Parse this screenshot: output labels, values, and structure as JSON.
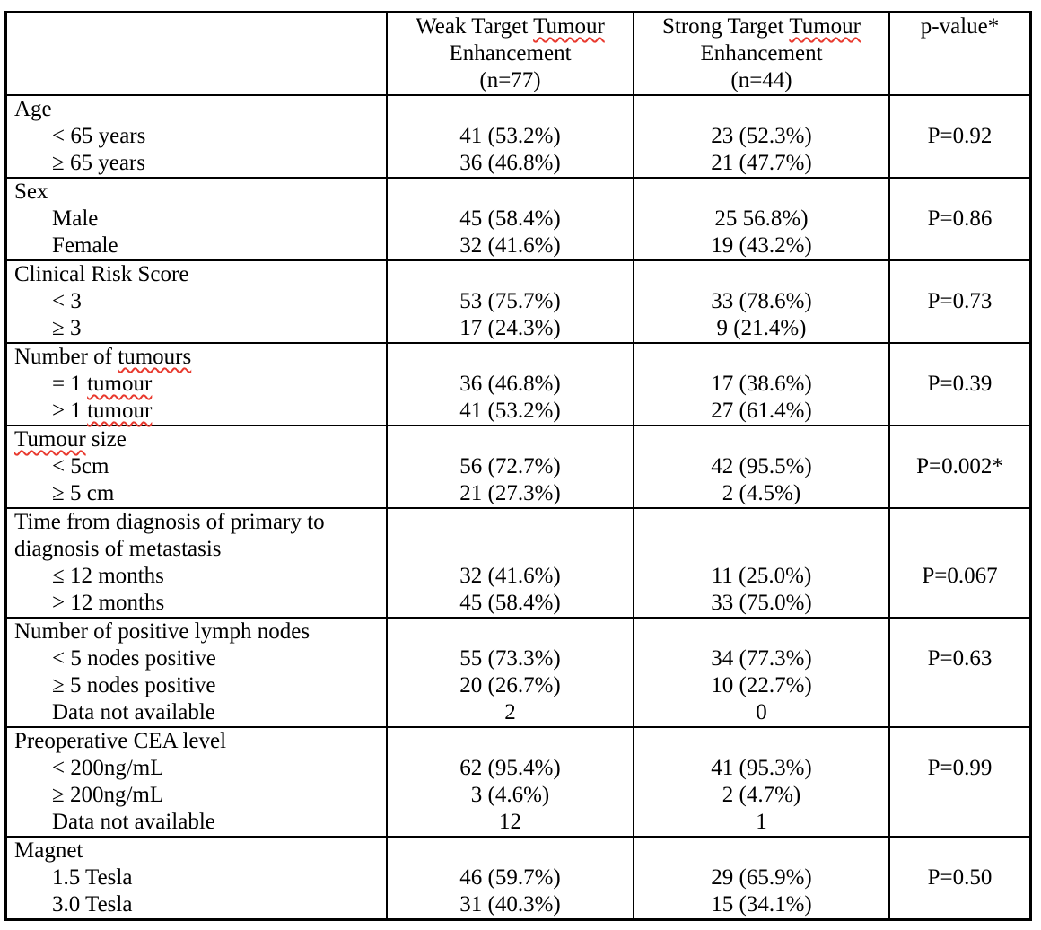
{
  "table": {
    "squiggle_color": "#e8392e",
    "border_color": "#000000",
    "sections": [
      {
        "name": "column-headers",
        "label_lines": [],
        "rows": [
          {
            "label": [],
            "weak": [
              {
                "text": "Weak Target "
              },
              {
                "text": "Tumour",
                "squiggle": true
              }
            ],
            "strong": [
              {
                "text": "Strong Target "
              },
              {
                "text": "Tumour",
                "squiggle": true
              }
            ]
          },
          {
            "label": [],
            "weak": [
              {
                "text": "Enhancement"
              }
            ],
            "strong": [
              {
                "text": "Enhancement"
              }
            ]
          },
          {
            "label": [],
            "weak": [
              {
                "text": "(n=77)"
              }
            ],
            "strong": [
              {
                "text": "(n=44)"
              }
            ]
          }
        ],
        "p_value": "p-value*"
      },
      {
        "name": "age",
        "label_lines": [
          [
            {
              "text": "Age"
            }
          ]
        ],
        "rows": [
          {
            "label": [
              {
                "text": "< 65 years"
              }
            ],
            "weak": [
              {
                "text": "41 (53.2%)"
              }
            ],
            "strong": [
              {
                "text": "23 (52.3%)"
              }
            ]
          },
          {
            "label": [
              {
                "text": "≥ 65 years"
              }
            ],
            "weak": [
              {
                "text": "36 (46.8%)"
              }
            ],
            "strong": [
              {
                "text": "21 (47.7%)"
              }
            ]
          }
        ],
        "p_value": "P=0.92"
      },
      {
        "name": "sex",
        "label_lines": [
          [
            {
              "text": "Sex"
            }
          ]
        ],
        "rows": [
          {
            "label": [
              {
                "text": "Male"
              }
            ],
            "weak": [
              {
                "text": "45 (58.4%)"
              }
            ],
            "strong": [
              {
                "text": "25 56.8%)"
              }
            ]
          },
          {
            "label": [
              {
                "text": "Female"
              }
            ],
            "weak": [
              {
                "text": "32 (41.6%)"
              }
            ],
            "strong": [
              {
                "text": "19 (43.2%)"
              }
            ]
          }
        ],
        "p_value": "P=0.86"
      },
      {
        "name": "clinical-risk-score",
        "label_lines": [
          [
            {
              "text": "Clinical Risk Score"
            }
          ]
        ],
        "rows": [
          {
            "label": [
              {
                "text": "< 3"
              }
            ],
            "weak": [
              {
                "text": "53 (75.7%)"
              }
            ],
            "strong": [
              {
                "text": "33 (78.6%)"
              }
            ]
          },
          {
            "label": [
              {
                "text": "≥ 3"
              }
            ],
            "weak": [
              {
                "text": "17 (24.3%)"
              }
            ],
            "strong": [
              {
                "text": "9 (21.4%)"
              }
            ]
          }
        ],
        "p_value": "P=0.73"
      },
      {
        "name": "number-of-tumours",
        "label_lines": [
          [
            {
              "text": "Number of "
            },
            {
              "text": "tumours",
              "squiggle": true
            }
          ]
        ],
        "rows": [
          {
            "label": [
              {
                "text": "= 1 "
              },
              {
                "text": "tumour",
                "squiggle": true
              }
            ],
            "weak": [
              {
                "text": "36 (46.8%)"
              }
            ],
            "strong": [
              {
                "text": "17 (38.6%)"
              }
            ]
          },
          {
            "label": [
              {
                "text": "> 1 "
              },
              {
                "text": "tumour",
                "squiggle": true
              }
            ],
            "weak": [
              {
                "text": "41 (53.2%)"
              }
            ],
            "strong": [
              {
                "text": "27 (61.4%)"
              }
            ]
          }
        ],
        "p_value": "P=0.39"
      },
      {
        "name": "tumour-size",
        "label_lines": [
          [
            {
              "text": "Tumour",
              "squiggle": true
            },
            {
              "text": " size"
            }
          ]
        ],
        "rows": [
          {
            "label": [
              {
                "text": "< 5cm"
              }
            ],
            "weak": [
              {
                "text": "56 (72.7%)"
              }
            ],
            "strong": [
              {
                "text": "42 (95.5%)"
              }
            ]
          },
          {
            "label": [
              {
                "text": "≥ 5 cm"
              }
            ],
            "weak": [
              {
                "text": "21 (27.3%)"
              }
            ],
            "strong": [
              {
                "text": "2 (4.5%)"
              }
            ]
          }
        ],
        "p_value": "P=0.002*"
      },
      {
        "name": "time-from-diagnosis",
        "label_lines": [
          [
            {
              "text": "Time from diagnosis of primary to"
            }
          ],
          [
            {
              "text": "diagnosis of metastasis"
            }
          ]
        ],
        "rows": [
          {
            "label": [
              {
                "text": "≤ 12 months"
              }
            ],
            "weak": [
              {
                "text": "32 (41.6%)"
              }
            ],
            "strong": [
              {
                "text": "11 (25.0%)"
              }
            ]
          },
          {
            "label": [
              {
                "text": "> 12 months"
              }
            ],
            "weak": [
              {
                "text": "45 (58.4%)"
              }
            ],
            "strong": [
              {
                "text": "33 (75.0%)"
              }
            ]
          }
        ],
        "p_value": "P=0.067"
      },
      {
        "name": "positive-lymph-nodes",
        "label_lines": [
          [
            {
              "text": "Number of positive lymph nodes"
            }
          ]
        ],
        "rows": [
          {
            "label": [
              {
                "text": "< 5 nodes positive"
              }
            ],
            "weak": [
              {
                "text": "55 (73.3%)"
              }
            ],
            "strong": [
              {
                "text": "34 (77.3%)"
              }
            ]
          },
          {
            "label": [
              {
                "text": "≥ 5 nodes positive"
              }
            ],
            "weak": [
              {
                "text": "20 (26.7%)"
              }
            ],
            "strong": [
              {
                "text": "10 (22.7%)"
              }
            ]
          },
          {
            "label": [
              {
                "text": "Data not available"
              }
            ],
            "weak": [
              {
                "text": "2"
              }
            ],
            "strong": [
              {
                "text": "0"
              }
            ]
          }
        ],
        "p_value": "P=0.63"
      },
      {
        "name": "preoperative-cea-level",
        "label_lines": [
          [
            {
              "text": "Preoperative CEA level"
            }
          ]
        ],
        "rows": [
          {
            "label": [
              {
                "text": "< 200ng/mL"
              }
            ],
            "weak": [
              {
                "text": "62 (95.4%)"
              }
            ],
            "strong": [
              {
                "text": "41 (95.3%)"
              }
            ]
          },
          {
            "label": [
              {
                "text": "≥ 200ng/mL"
              }
            ],
            "weak": [
              {
                "text": "3 (4.6%)"
              }
            ],
            "strong": [
              {
                "text": "2 (4.7%)"
              }
            ]
          },
          {
            "label": [
              {
                "text": "Data not available"
              }
            ],
            "weak": [
              {
                "text": "12"
              }
            ],
            "strong": [
              {
                "text": "1"
              }
            ]
          }
        ],
        "p_value": "P=0.99"
      },
      {
        "name": "magnet",
        "label_lines": [
          [
            {
              "text": "Magnet"
            }
          ]
        ],
        "rows": [
          {
            "label": [
              {
                "text": "1.5 Tesla"
              }
            ],
            "weak": [
              {
                "text": "46 (59.7%)"
              }
            ],
            "strong": [
              {
                "text": "29 (65.9%)"
              }
            ]
          },
          {
            "label": [
              {
                "text": "3.0 Tesla"
              }
            ],
            "weak": [
              {
                "text": "31 (40.3%)"
              }
            ],
            "strong": [
              {
                "text": "15 (34.1%)"
              }
            ]
          }
        ],
        "p_value": "P=0.50"
      }
    ]
  }
}
